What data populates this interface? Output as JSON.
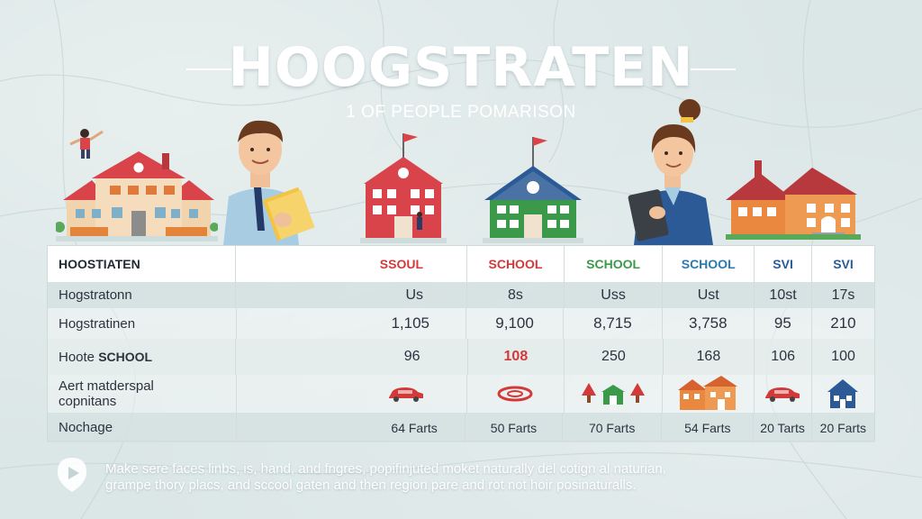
{
  "title": "HOOGSTRATEN",
  "subtitle": "1 OF PEOPLE POMARISON",
  "table": {
    "headers": [
      "HOOSTIATEN",
      "SSOUL",
      "SCHOOL",
      "SCHOOL",
      "SCHOOL",
      "SVI",
      "SVI"
    ],
    "header_colors": [
      "#222a33",
      "#d23a3a",
      "#d23a3a",
      "#3a9a4a",
      "#2a7ab0",
      "#2b5a96",
      "#2b5a96"
    ],
    "rows": [
      {
        "label": "Hogstratonn",
        "values": [
          "Us",
          "8s",
          "Uss",
          "Ust",
          "10st",
          "17s"
        ]
      },
      {
        "label": "Hogstratinen",
        "values": [
          "1,105",
          "9,100",
          "8,715",
          "3,758",
          "95",
          "210"
        ]
      },
      {
        "label_prefix": "Hoote",
        "label_strong": "SCHOOL",
        "values": [
          "96",
          "108",
          "250",
          "168",
          "106",
          "100"
        ],
        "highlight_index": 1
      },
      {
        "label_line1": "Aert matderspal",
        "label_line2": "copnitans",
        "icons": [
          "red-car-icon",
          "red-ring-icon",
          "green-trees-house-icon",
          "orange-houses-icon",
          "red-car-icon",
          "blue-house-icon"
        ]
      },
      {
        "label": "Nochage",
        "values": [
          "64 Farts",
          "50 Farts",
          "70 Farts",
          "54 Farts",
          "20 Tarts",
          "20 Farts"
        ]
      }
    ]
  },
  "footer": {
    "icon": "map-pin-icon",
    "line1": "Make sere faces linbs, is, hand, and fngres, popifinjuted moket naturally del cotign al naturian,",
    "line2": "grampe thory placs, and sccool gaten and then region pare and rot not hoir posinaturalls."
  },
  "colors": {
    "red": "#d23a3a",
    "green": "#3a9a4a",
    "blue": "#2a7ab0",
    "navy": "#2b5a96",
    "background": "#dbe6e6"
  }
}
